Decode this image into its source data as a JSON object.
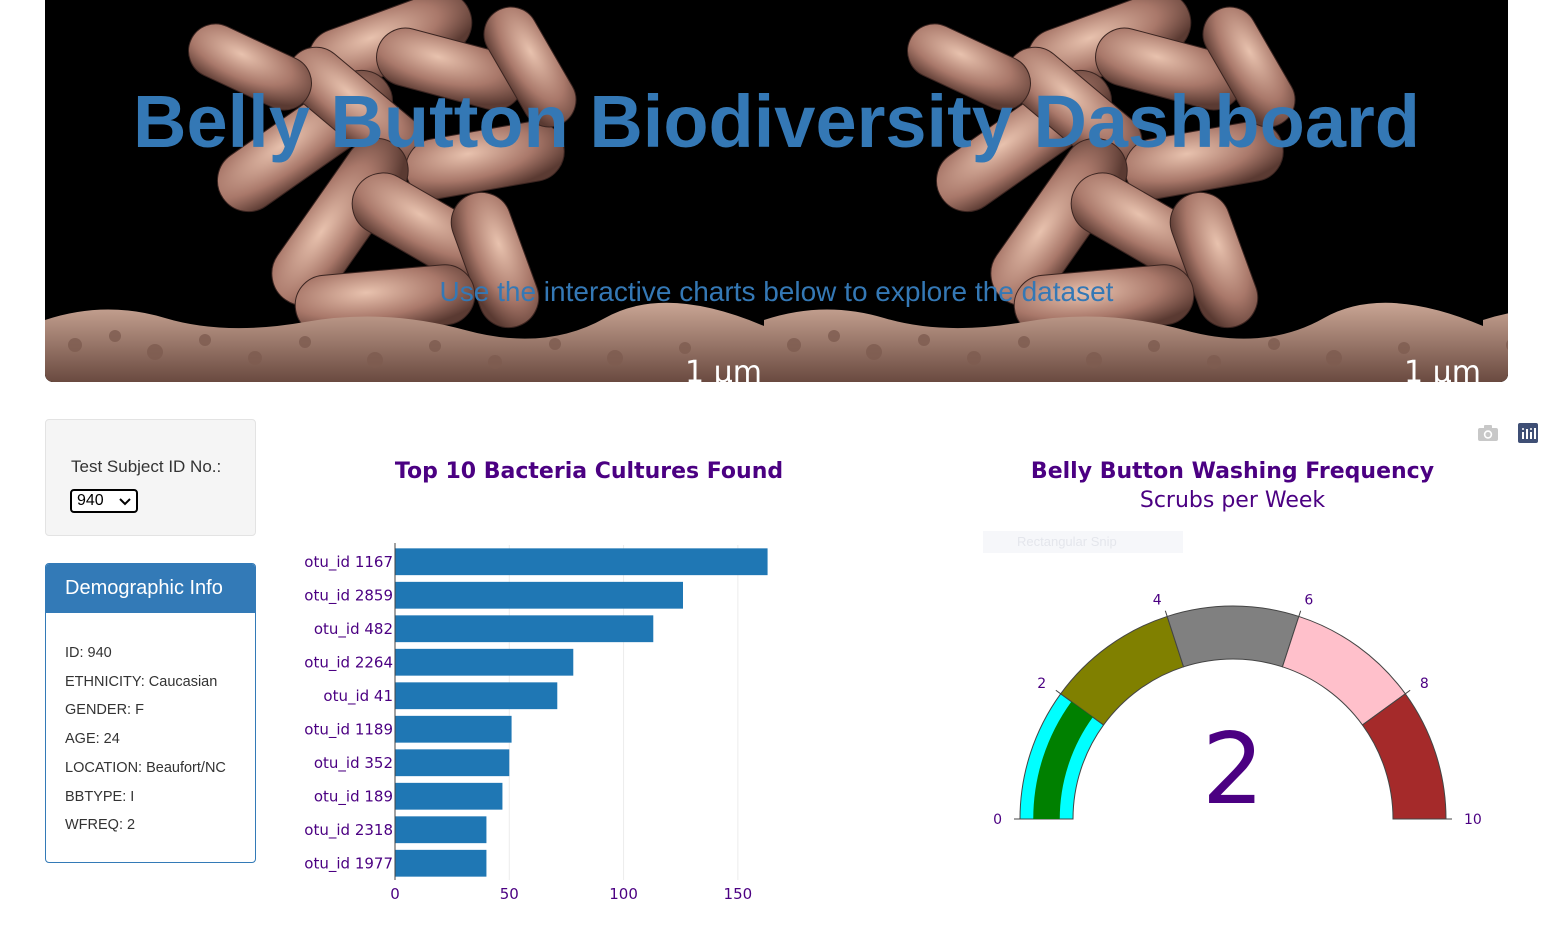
{
  "header": {
    "title": "Belly Button Biodiversity Dashboard",
    "subtitle": "Use the interactive charts below to explore the dataset",
    "scale_label": "1 μm"
  },
  "selector": {
    "label": "Test Subject ID No.:",
    "selected": "940"
  },
  "demographics": {
    "heading": "Demographic Info",
    "rows": [
      "ID: 940",
      "ETHNICITY: Caucasian",
      "GENDER: F",
      "AGE: 24",
      "LOCATION: Beaufort/NC",
      "BBTYPE: I",
      "WFREQ: 2"
    ]
  },
  "bar_chart": {
    "title": "Top 10 Bacteria Cultures Found"
  },
  "gauge_chart": {
    "title": "Belly Button Washing Frequency",
    "subtitle": "Scrubs per Week",
    "faded_label": "Rectangular Snip"
  },
  "colors": {
    "accent": "#337ab7",
    "title_purple": "#4b0082",
    "bar": "#1f77b4"
  },
  "chart_data": [
    {
      "type": "bar",
      "orientation": "horizontal",
      "title": "Top 10 Bacteria Cultures Found",
      "categories": [
        "otu_id 1167",
        "otu_id 2859",
        "otu_id 482",
        "otu_id 2264",
        "otu_id 41",
        "otu_id 1189",
        "otu_id 352",
        "otu_id 189",
        "otu_id 2318",
        "otu_id 1977"
      ],
      "values": [
        163,
        126,
        113,
        78,
        71,
        51,
        50,
        47,
        40,
        40
      ],
      "xlim": [
        0,
        175
      ],
      "xticks": [
        0,
        50,
        100,
        150
      ],
      "grid": true
    },
    {
      "type": "gauge",
      "title": "Belly Button Washing Frequency",
      "subtitle": "Scrubs per Week",
      "value": 2,
      "range": [
        0,
        10
      ],
      "ticks": [
        0,
        2,
        4,
        6,
        8,
        10
      ],
      "steps": [
        {
          "range": [
            0,
            2
          ],
          "color": "#00ffff"
        },
        {
          "range": [
            2,
            4
          ],
          "color": "#808000"
        },
        {
          "range": [
            4,
            6
          ],
          "color": "#808080"
        },
        {
          "range": [
            6,
            8
          ],
          "color": "#ffc0cb"
        },
        {
          "range": [
            8,
            10
          ],
          "color": "#a52a2a"
        }
      ],
      "bar_color": "#008000"
    }
  ]
}
